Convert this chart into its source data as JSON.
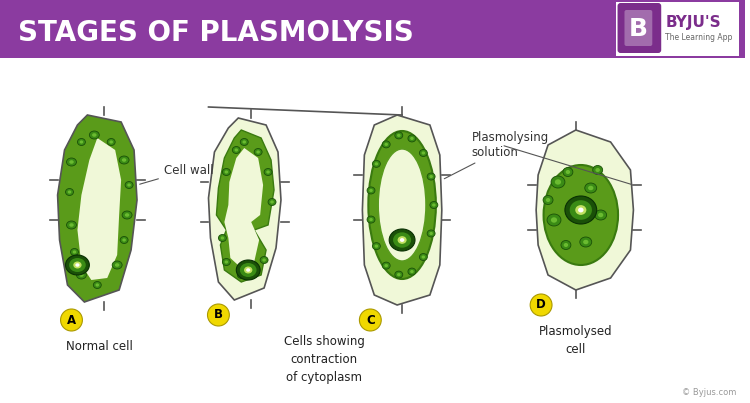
{
  "title": "STAGES OF PLASMOLYSIS",
  "title_bg_color": "#8B3BA0",
  "title_text_color": "#FFFFFF",
  "bg_color": "#FFFFFF",
  "cell_outline_color": "#555555",
  "cytoplasm_green": "#5A9B1A",
  "vacuole_light": "#F0F8D8",
  "organelle_dark": "#2A6B0A",
  "organelle_mid": "#4A8B15",
  "nucleus_outer": "#2A6010",
  "label_badge_color": "#F0D800",
  "label_badge_border": "#888800",
  "caption_color": "#222222",
  "annotation_color": "#333333",
  "byju_purple": "#7B2D8B",
  "copyright_color": "#999999",
  "caption_A": "Normal cell",
  "caption_B": "Cells showing\ncontraction\nof cytoplasm",
  "caption_D": "Plasmolysed\ncell",
  "annotation_cellwall": "Cell wall",
  "annotation_plasmo": "Plasmolysing\nsolution",
  "copyright": "© Byjus.com"
}
